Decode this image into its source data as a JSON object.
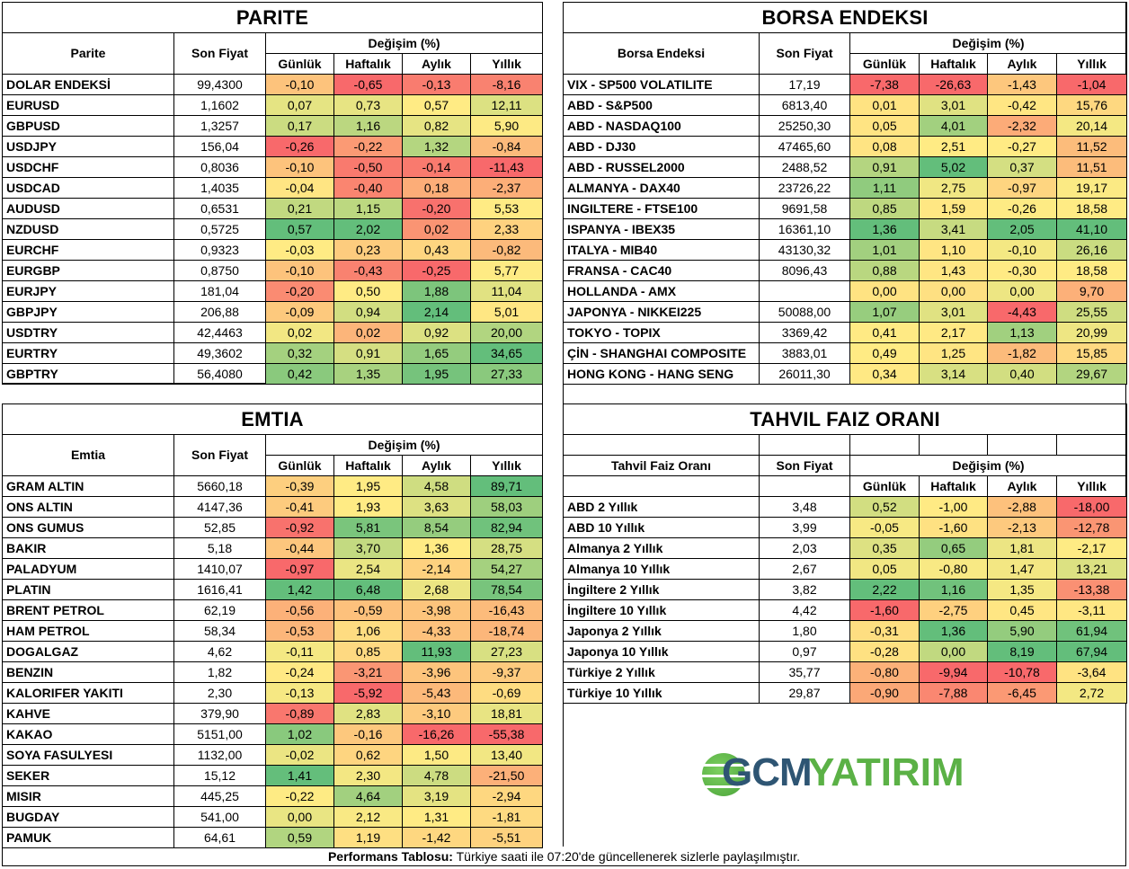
{
  "common": {
    "son_fiyat": "Son Fiyat",
    "degisim": "Değişim (%)",
    "gunluk": "Günlük",
    "haftalik": "Haftalık",
    "aylik": "Aylık",
    "yillik": "Yıllık"
  },
  "colors": {
    "scale_min": "#F8696B",
    "scale_mid": "#FFEB84",
    "scale_max": "#63BE7B",
    "logo_dark": "#2E5573",
    "logo_green": "#5BB146"
  },
  "parite": {
    "title": "PARITE",
    "col_header": "Parite",
    "rows": [
      {
        "name": "DOLAR ENDEKSİ",
        "price": "99,4300",
        "g": "-0,10",
        "h": "-0,65",
        "a": "-0,13",
        "y": "-8,16"
      },
      {
        "name": "EURUSD",
        "price": "1,1602",
        "g": "0,07",
        "h": "0,73",
        "a": "0,57",
        "y": "12,11"
      },
      {
        "name": "GBPUSD",
        "price": "1,3257",
        "g": "0,17",
        "h": "1,16",
        "a": "0,82",
        "y": "5,90"
      },
      {
        "name": "USDJPY",
        "price": "156,04",
        "g": "-0,26",
        "h": "-0,22",
        "a": "1,32",
        "y": "-0,84"
      },
      {
        "name": "USDCHF",
        "price": "0,8036",
        "g": "-0,10",
        "h": "-0,50",
        "a": "-0,14",
        "y": "-11,43"
      },
      {
        "name": "USDCAD",
        "price": "1,4035",
        "g": "-0,04",
        "h": "-0,40",
        "a": "0,18",
        "y": "-2,37"
      },
      {
        "name": "AUDUSD",
        "price": "0,6531",
        "g": "0,21",
        "h": "1,15",
        "a": "-0,20",
        "y": "5,53"
      },
      {
        "name": "NZDUSD",
        "price": "0,5725",
        "g": "0,57",
        "h": "2,02",
        "a": "0,02",
        "y": "2,33"
      },
      {
        "name": "EURCHF",
        "price": "0,9323",
        "g": "-0,03",
        "h": "0,23",
        "a": "0,43",
        "y": "-0,82"
      },
      {
        "name": "EURGBP",
        "price": "0,8750",
        "g": "-0,10",
        "h": "-0,43",
        "a": "-0,25",
        "y": "5,77"
      },
      {
        "name": "EURJPY",
        "price": "181,04",
        "g": "-0,20",
        "h": "0,50",
        "a": "1,88",
        "y": "11,04"
      },
      {
        "name": "GBPJPY",
        "price": "206,88",
        "g": "-0,09",
        "h": "0,94",
        "a": "2,14",
        "y": "5,01"
      },
      {
        "name": "USDTRY",
        "price": "42,4463",
        "g": "0,02",
        "h": "0,02",
        "a": "0,92",
        "y": "20,00"
      },
      {
        "name": "EURTRY",
        "price": "49,3602",
        "g": "0,32",
        "h": "0,91",
        "a": "1,65",
        "y": "34,65"
      },
      {
        "name": "GBPTRY",
        "price": "56,4080",
        "g": "0,42",
        "h": "1,35",
        "a": "1,95",
        "y": "27,33"
      }
    ]
  },
  "borsa": {
    "title": "BORSA ENDEKSI",
    "col_header": "Borsa Endeksi",
    "rows": [
      {
        "name": "VIX  - SP500 VOLATILITE",
        "price": "17,19",
        "g": "-7,38",
        "h": "-26,63",
        "a": "-1,43",
        "y": "-1,04"
      },
      {
        "name": "ABD - S&P500",
        "price": "6813,40",
        "g": "0,01",
        "h": "3,01",
        "a": "-0,42",
        "y": "15,76"
      },
      {
        "name": "ABD - NASDAQ100",
        "price": "25250,30",
        "g": "0,05",
        "h": "4,01",
        "a": "-2,32",
        "y": "20,14"
      },
      {
        "name": "ABD - DJ30",
        "price": "47465,60",
        "g": "0,08",
        "h": "2,51",
        "a": "-0,27",
        "y": "11,52"
      },
      {
        "name": "ABD - RUSSEL2000",
        "price": "2488,52",
        "g": "0,91",
        "h": "5,02",
        "a": "0,37",
        "y": "11,51"
      },
      {
        "name": "ALMANYA - DAX40",
        "price": "23726,22",
        "g": "1,11",
        "h": "2,75",
        "a": "-0,97",
        "y": "19,17"
      },
      {
        "name": "INGILTERE - FTSE100",
        "price": "9691,58",
        "g": "0,85",
        "h": "1,59",
        "a": "-0,26",
        "y": "18,58"
      },
      {
        "name": "ISPANYA - IBEX35",
        "price": "16361,10",
        "g": "1,36",
        "h": "3,41",
        "a": "2,05",
        "y": "41,10"
      },
      {
        "name": "ITALYA - MIB40",
        "price": "43130,32",
        "g": "1,01",
        "h": "1,10",
        "a": "-0,10",
        "y": "26,16"
      },
      {
        "name": "FRANSA - CAC40",
        "price": "8096,43",
        "g": "0,88",
        "h": "1,43",
        "a": "-0,30",
        "y": "18,58"
      },
      {
        "name": "HOLLANDA - AMX",
        "price": "",
        "g": "0,00",
        "h": "0,00",
        "a": "0,00",
        "y": "9,70"
      },
      {
        "name": "JAPONYA - NIKKEI225",
        "price": "50088,00",
        "g": "1,07",
        "h": "3,01",
        "a": "-4,43",
        "y": "25,55"
      },
      {
        "name": "TOKYO - TOPIX",
        "price": "3369,42",
        "g": "0,41",
        "h": "2,17",
        "a": "1,13",
        "y": "20,99"
      },
      {
        "name": "ÇİN - SHANGHAI COMPOSITE",
        "price": "3883,01",
        "g": "0,49",
        "h": "1,25",
        "a": "-1,82",
        "y": "15,85"
      },
      {
        "name": "HONG KONG - HANG SENG",
        "price": "26011,30",
        "g": "0,34",
        "h": "3,14",
        "a": "0,40",
        "y": "29,67"
      }
    ]
  },
  "emtia": {
    "title": "EMTIA",
    "col_header": "Emtia",
    "rows": [
      {
        "name": "GRAM ALTIN",
        "price": "5660,18",
        "g": "-0,39",
        "h": "1,95",
        "a": "4,58",
        "y": "89,71"
      },
      {
        "name": "ONS ALTIN",
        "price": "4147,36",
        "g": "-0,41",
        "h": "1,93",
        "a": "3,63",
        "y": "58,03"
      },
      {
        "name": "ONS GUMUS",
        "price": "52,85",
        "g": "-0,92",
        "h": "5,81",
        "a": "8,54",
        "y": "82,94"
      },
      {
        "name": "BAKIR",
        "price": "5,18",
        "g": "-0,44",
        "h": "3,70",
        "a": "1,36",
        "y": "28,75"
      },
      {
        "name": "PALADYUM",
        "price": "1410,07",
        "g": "-0,97",
        "h": "2,54",
        "a": "-2,14",
        "y": "54,27"
      },
      {
        "name": "PLATIN",
        "price": "1616,41",
        "g": "1,42",
        "h": "6,48",
        "a": "2,68",
        "y": "78,54"
      },
      {
        "name": "BRENT PETROL",
        "price": "62,19",
        "g": "-0,56",
        "h": "-0,59",
        "a": "-3,98",
        "y": "-16,43"
      },
      {
        "name": "HAM PETROL",
        "price": "58,34",
        "g": "-0,53",
        "h": "1,06",
        "a": "-4,33",
        "y": "-18,74"
      },
      {
        "name": "DOGALGAZ",
        "price": "4,62",
        "g": "-0,11",
        "h": "0,85",
        "a": "11,93",
        "y": "27,23"
      },
      {
        "name": "BENZIN",
        "price": "1,82",
        "g": "-0,24",
        "h": "-3,21",
        "a": "-3,96",
        "y": "-9,37"
      },
      {
        "name": "KALORIFER YAKITI",
        "price": "2,30",
        "g": "-0,13",
        "h": "-5,92",
        "a": "-5,43",
        "y": "-0,69"
      },
      {
        "name": "KAHVE",
        "price": "379,90",
        "g": "-0,89",
        "h": "2,83",
        "a": "-3,10",
        "y": "18,81"
      },
      {
        "name": "KAKAO",
        "price": "5151,00",
        "g": "1,02",
        "h": "-0,16",
        "a": "-16,26",
        "y": "-55,38"
      },
      {
        "name": "SOYA FASULYESI",
        "price": "1132,00",
        "g": "-0,02",
        "h": "0,62",
        "a": "1,50",
        "y": "13,40"
      },
      {
        "name": "SEKER",
        "price": "15,12",
        "g": "1,41",
        "h": "2,30",
        "a": "4,78",
        "y": "-21,50"
      },
      {
        "name": "MISIR",
        "price": "445,25",
        "g": "-0,22",
        "h": "4,64",
        "a": "3,19",
        "y": "-2,94"
      },
      {
        "name": "BUGDAY",
        "price": "541,00",
        "g": "0,00",
        "h": "2,12",
        "a": "1,31",
        "y": "-1,81"
      },
      {
        "name": "PAMUK",
        "price": "64,61",
        "g": "0,59",
        "h": "1,19",
        "a": "-1,42",
        "y": "-5,51"
      }
    ]
  },
  "tahvil": {
    "title": "TAHVIL FAIZ ORANI",
    "col_header": "Tahvil Faiz Oranı",
    "rows": [
      {
        "name": "ABD 2 Yıllık",
        "price": "3,48",
        "g": "0,52",
        "h": "-1,00",
        "a": "-2,88",
        "y": "-18,00"
      },
      {
        "name": "ABD 10 Yıllık",
        "price": "3,99",
        "g": "-0,05",
        "h": "-1,60",
        "a": "-2,13",
        "y": "-12,78"
      },
      {
        "name": "Almanya 2 Yıllık",
        "price": "2,03",
        "g": "0,35",
        "h": "0,65",
        "a": "1,81",
        "y": "-2,17"
      },
      {
        "name": "Almanya 10 Yıllık",
        "price": "2,67",
        "g": "0,05",
        "h": "-0,80",
        "a": "1,47",
        "y": "13,21"
      },
      {
        "name": "İngiltere 2 Yıllık",
        "price": "3,82",
        "g": "2,22",
        "h": "1,16",
        "a": "1,35",
        "y": "-13,38"
      },
      {
        "name": "İngiltere 10 Yıllık",
        "price": "4,42",
        "g": "-1,60",
        "h": "-2,75",
        "a": "0,45",
        "y": "-3,11"
      },
      {
        "name": "Japonya 2 Yıllık",
        "price": "1,80",
        "g": "-0,31",
        "h": "1,36",
        "a": "5,90",
        "y": "61,94"
      },
      {
        "name": "Japonya 10 Yıllık",
        "price": "0,97",
        "g": "-0,28",
        "h": "0,00",
        "a": "8,19",
        "y": "67,94"
      },
      {
        "name": "Türkiye 2 Yıllık",
        "price": "35,77",
        "g": "-0,80",
        "h": "-9,94",
        "a": "-10,78",
        "y": "-3,64"
      },
      {
        "name": "Türkiye 10 Yıllık",
        "price": "29,87",
        "g": "-0,90",
        "h": "-7,88",
        "a": "-6,45",
        "y": "2,72"
      }
    ]
  },
  "logo": {
    "part1": "GCM",
    "part2": "YATIRIM"
  },
  "footer": {
    "label": "Performans Tablosu:",
    "text": " Türkiye saati ile 07:20'de güncellenerek sizlerle paylaşılmıştır."
  }
}
